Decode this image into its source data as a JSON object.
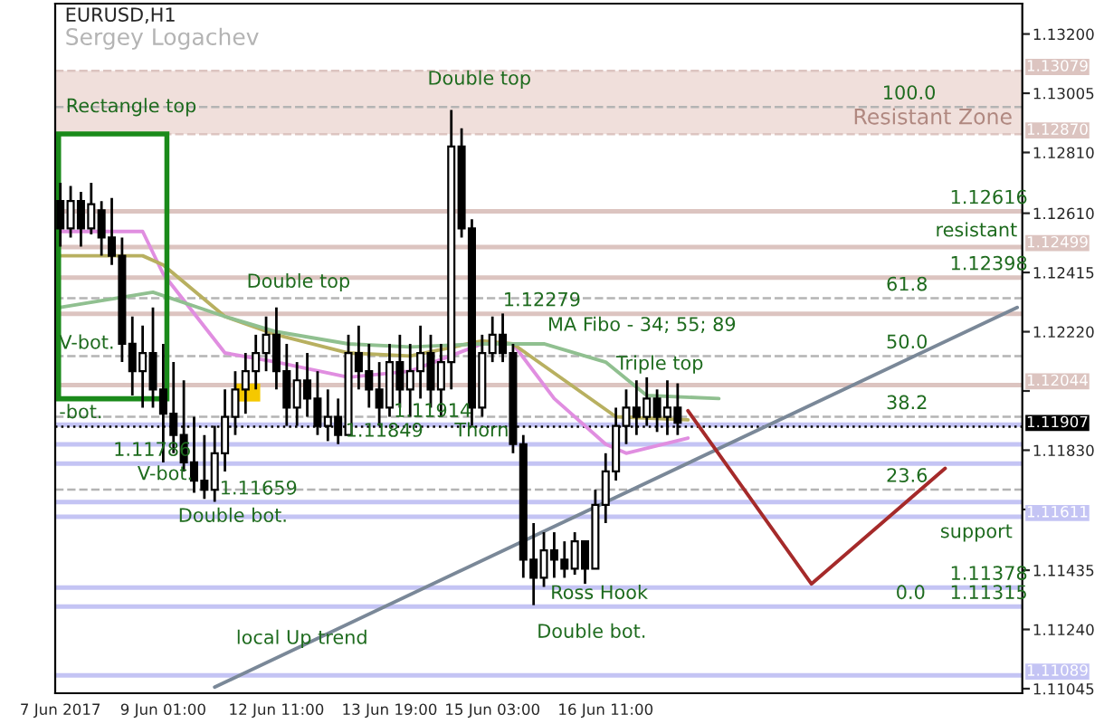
{
  "chart_data": {
    "type": "candlestick",
    "title": "EURUSD,H1",
    "subtitle": "Sergey Logachev",
    "categories": [
      "7 Jun 2017",
      null,
      null,
      null,
      null,
      null,
      null,
      null,
      null,
      null,
      "9 Jun 01:00",
      null,
      null,
      null,
      null,
      null,
      null,
      null,
      null,
      null,
      null,
      "12 Jun 11:00",
      null,
      null,
      null,
      null,
      null,
      null,
      null,
      null,
      null,
      null,
      "13 Jun 19:00",
      null,
      null,
      null,
      null,
      null,
      null,
      null,
      null,
      null,
      "15 Jun 03:00",
      null,
      null,
      null,
      null,
      null,
      null,
      null,
      null,
      null,
      null,
      "16 Jun 11:00",
      null,
      null,
      null,
      null,
      null,
      null,
      null,
      null,
      null,
      null,
      null,
      null,
      null,
      null,
      null,
      null,
      null,
      null,
      null,
      null,
      null,
      null,
      null,
      null,
      null,
      null,
      null,
      null,
      null,
      null,
      null,
      null,
      null,
      null,
      null,
      null,
      null,
      null,
      null,
      null
    ],
    "ohlc": [
      [
        1.1265,
        1.1271,
        1.125,
        1.1256
      ],
      [
        1.1256,
        1.127,
        1.1253,
        1.1265
      ],
      [
        1.1265,
        1.1268,
        1.125,
        1.1256
      ],
      [
        1.1256,
        1.1271,
        1.1254,
        1.1264
      ],
      [
        1.1262,
        1.1265,
        1.1247,
        1.1253
      ],
      [
        1.1253,
        1.1266,
        1.1244,
        1.1247
      ],
      [
        1.1247,
        1.1253,
        1.1212,
        1.1218
      ],
      [
        1.1218,
        1.1227,
        1.1201,
        1.1209
      ],
      [
        1.1209,
        1.1224,
        1.1197,
        1.1215
      ],
      [
        1.1215,
        1.123,
        1.1197,
        1.1203
      ],
      [
        1.1203,
        1.1218,
        1.1179,
        1.1195
      ],
      [
        1.1195,
        1.1212,
        1.1182,
        1.1188
      ],
      [
        1.1188,
        1.1206,
        1.1176,
        1.1179
      ],
      [
        1.1179,
        1.1194,
        1.1169,
        1.1173
      ],
      [
        1.1173,
        1.1188,
        1.1167,
        1.117
      ],
      [
        1.117,
        1.1191,
        1.1166,
        1.1182
      ],
      [
        1.1182,
        1.1203,
        1.1176,
        1.1194
      ],
      [
        1.1194,
        1.1209,
        1.1188,
        1.1203
      ],
      [
        1.1203,
        1.1215,
        1.1195,
        1.1209
      ],
      [
        1.1209,
        1.1221,
        1.1203,
        1.1215
      ],
      [
        1.1215,
        1.1227,
        1.1209,
        1.1221
      ],
      [
        1.1221,
        1.123,
        1.1203,
        1.1209
      ],
      [
        1.1209,
        1.1218,
        1.1191,
        1.1197
      ],
      [
        1.1197,
        1.1212,
        1.1191,
        1.1206
      ],
      [
        1.1206,
        1.1215,
        1.1194,
        1.12
      ],
      [
        1.12,
        1.1209,
        1.1188,
        1.1191
      ],
      [
        1.1191,
        1.1203,
        1.1186,
        1.1194
      ],
      [
        1.1194,
        1.12,
        1.1185,
        1.1188
      ],
      [
        1.1188,
        1.1221,
        1.1188,
        1.1215
      ],
      [
        1.1215,
        1.1224,
        1.1203,
        1.1209
      ],
      [
        1.1209,
        1.1218,
        1.1197,
        1.1203
      ],
      [
        1.1203,
        1.1212,
        1.1191,
        1.1197
      ],
      [
        1.1197,
        1.1218,
        1.1194,
        1.1212
      ],
      [
        1.1212,
        1.1221,
        1.1197,
        1.1203
      ],
      [
        1.1203,
        1.1218,
        1.1194,
        1.1209
      ],
      [
        1.1209,
        1.1224,
        1.12,
        1.1215
      ],
      [
        1.1215,
        1.1221,
        1.1197,
        1.1203
      ],
      [
        1.1203,
        1.1218,
        1.1194,
        1.1212
      ],
      [
        1.1212,
        1.1295,
        1.1203,
        1.1283
      ],
      [
        1.1283,
        1.1289,
        1.1253,
        1.1256
      ],
      [
        1.1256,
        1.1259,
        1.1191,
        1.1197
      ],
      [
        1.1197,
        1.1221,
        1.1194,
        1.1215
      ],
      [
        1.1215,
        1.1227,
        1.1212,
        1.1221
      ],
      [
        1.1221,
        1.1228,
        1.1212,
        1.1215
      ],
      [
        1.1215,
        1.1218,
        1.1182,
        1.1185
      ],
      [
        1.1185,
        1.1188,
        1.1141,
        1.1147
      ],
      [
        1.1147,
        1.1159,
        1.1132,
        1.1141
      ],
      [
        1.1141,
        1.1156,
        1.1138,
        1.115
      ],
      [
        1.115,
        1.1156,
        1.1141,
        1.1147
      ],
      [
        1.1147,
        1.1153,
        1.1141,
        1.1144
      ],
      [
        1.1144,
        1.1156,
        1.1142,
        1.1153
      ],
      [
        1.1153,
        1.1153,
        1.1139,
        1.1144
      ],
      [
        1.1144,
        1.117,
        1.1144,
        1.1165
      ],
      [
        1.1165,
        1.1182,
        1.1159,
        1.1176
      ],
      [
        1.1176,
        1.1197,
        1.1173,
        1.1191
      ],
      [
        1.1191,
        1.1203,
        1.1185,
        1.1197
      ],
      [
        1.1197,
        1.1206,
        1.1188,
        1.1194
      ],
      [
        1.1194,
        1.1207,
        1.1191,
        1.12
      ],
      [
        1.12,
        1.1203,
        1.1189,
        1.1194
      ],
      [
        1.1194,
        1.1206,
        1.1188,
        1.1197
      ],
      [
        1.1197,
        1.1205,
        1.1188,
        1.1192
      ],
      null,
      null,
      null,
      null,
      null,
      null,
      null,
      null,
      null,
      null,
      null,
      null,
      null,
      null,
      null,
      null,
      null,
      null,
      null,
      null,
      null,
      null,
      null,
      null,
      null,
      null,
      null,
      null,
      null,
      null,
      null,
      null,
      null
    ],
    "series": [
      {
        "type": "line",
        "color": "#e08ee0",
        "values": [
          1.1255,
          null,
          null,
          null,
          null,
          null,
          null,
          null,
          1.1255,
          null,
          1.1241,
          null,
          null,
          null,
          null,
          null,
          1.1215,
          null,
          null,
          null,
          null,
          1.1212,
          null,
          null,
          null,
          null,
          null,
          null,
          1.1207,
          null,
          null,
          null,
          null,
          null,
          1.1209,
          null,
          null,
          null,
          null,
          null,
          null,
          1.1218,
          null,
          null,
          1.1218,
          null,
          null,
          null,
          1.12,
          null,
          null,
          null,
          null,
          1.1185,
          null,
          1.1182,
          null,
          null,
          null,
          null,
          null,
          1.1187,
          null,
          null,
          null,
          null,
          null,
          null,
          null,
          null,
          null,
          null,
          null,
          null,
          null,
          null,
          null,
          null,
          null,
          null,
          null,
          null,
          null,
          null,
          null,
          null,
          null,
          null,
          null,
          null,
          null,
          null,
          null,
          null
        ]
      },
      {
        "type": "line",
        "color": "#b8b060",
        "values": [
          1.1247,
          null,
          null,
          null,
          null,
          null,
          null,
          null,
          1.1247,
          null,
          1.1244,
          null,
          null,
          null,
          null,
          null,
          1.1227,
          null,
          null,
          null,
          null,
          1.1221,
          null,
          null,
          null,
          null,
          null,
          null,
          1.1215,
          null,
          null,
          null,
          null,
          null,
          1.1214,
          null,
          null,
          null,
          null,
          null,
          null,
          1.1219,
          null,
          null,
          1.1218,
          null,
          null,
          null,
          null,
          1.1206,
          null,
          null,
          null,
          null,
          1.1194,
          null,
          null,
          null,
          null,
          null,
          null,
          1.1193,
          null,
          null,
          null,
          null,
          null,
          null,
          null,
          null,
          null,
          null,
          null,
          null,
          null,
          null,
          null,
          null,
          null,
          null,
          null,
          null,
          null,
          null,
          null,
          null,
          null,
          null,
          null,
          null,
          null,
          null,
          null,
          null
        ]
      },
      {
        "type": "line",
        "color": "#90c090",
        "values": [
          1.123,
          null,
          null,
          null,
          null,
          null,
          null,
          null,
          null,
          1.1235,
          null,
          null,
          null,
          null,
          null,
          null,
          1.1227,
          null,
          null,
          null,
          null,
          1.1222,
          null,
          null,
          null,
          null,
          null,
          null,
          1.1218,
          null,
          null,
          null,
          null,
          null,
          1.1217,
          null,
          null,
          null,
          null,
          null,
          null,
          1.1218,
          null,
          null,
          null,
          null,
          null,
          1.1218,
          null,
          null,
          null,
          null,
          null,
          1.1212,
          null,
          null,
          null,
          1.1201,
          null,
          null,
          null,
          null,
          null,
          null,
          1.12,
          null,
          null,
          null,
          null,
          null,
          null,
          null,
          null,
          null,
          null,
          null,
          null,
          null,
          null,
          null,
          null,
          null,
          null,
          null,
          null,
          null,
          null,
          null,
          null,
          null,
          null,
          null,
          null,
          null
        ]
      },
      {
        "type": "line",
        "color": "#7a8898",
        "values": [
          null,
          null,
          null,
          null,
          null,
          null,
          null,
          null,
          null,
          null,
          null,
          null,
          null,
          null,
          null,
          1.1105,
          null,
          null,
          null,
          null,
          null,
          null,
          null,
          null,
          null,
          null,
          null,
          null,
          null,
          null,
          null,
          null,
          null,
          null,
          null,
          null,
          null,
          null,
          null,
          null,
          null,
          null,
          null,
          null,
          null,
          null,
          null,
          null,
          null,
          null,
          null,
          null,
          null,
          null,
          null,
          null,
          null,
          null,
          null,
          null,
          null,
          null,
          null,
          null,
          null,
          null,
          null,
          null,
          null,
          null,
          null,
          null,
          null,
          null,
          null,
          null,
          null,
          null,
          null,
          null,
          null,
          null,
          null,
          null,
          null,
          null,
          null,
          null,
          null,
          null,
          null,
          null,
          null,
          1.123
        ]
      },
      {
        "type": "line",
        "color": "#a52a2a",
        "values": [
          null,
          null,
          null,
          null,
          null,
          null,
          null,
          null,
          null,
          null,
          null,
          null,
          null,
          null,
          null,
          null,
          null,
          null,
          null,
          null,
          null,
          null,
          null,
          null,
          null,
          null,
          null,
          null,
          null,
          null,
          null,
          null,
          null,
          null,
          null,
          null,
          null,
          null,
          null,
          null,
          null,
          null,
          null,
          null,
          null,
          null,
          null,
          null,
          null,
          null,
          null,
          null,
          null,
          null,
          null,
          null,
          null,
          null,
          null,
          null,
          null,
          1.1196,
          null,
          null,
          null,
          null,
          null,
          null,
          null,
          null,
          null,
          null,
          null,
          1.1139,
          null,
          null,
          null,
          null,
          null,
          null,
          null,
          null,
          null,
          null,
          null,
          null,
          1.1177,
          null,
          null,
          null,
          null,
          null,
          null,
          null
        ]
      }
    ],
    "ylim": [
      1.1103,
      1.133
    ],
    "yticks": [
      {
        "value": 1.132,
        "label": "1.13200"
      },
      {
        "value": 1.13005,
        "label": "1.13005"
      },
      {
        "value": 1.1281,
        "label": "1.12810"
      },
      {
        "value": 1.1261,
        "label": "1.12610"
      },
      {
        "value": 1.12415,
        "label": "1.12415"
      },
      {
        "value": 1.1222,
        "label": "1.12220"
      },
      {
        "value": 1.12025,
        "label": null
      },
      {
        "value": 1.1183,
        "label": "1.11830"
      },
      {
        "value": 1.11635,
        "label": null
      },
      {
        "value": 1.11435,
        "label": "1.11435"
      },
      {
        "value": 1.1124,
        "label": "1.11240"
      },
      {
        "value": 1.11045,
        "label": "1.11045"
      }
    ],
    "bands": [
      {
        "axis": "y",
        "from": 1.1287,
        "to": 1.13079,
        "label": "Resistant Zone",
        "color": "#f0dfdb"
      }
    ],
    "ref_lines": [
      {
        "axis": "y",
        "value": 1.13079,
        "label": "1.13079",
        "color": "#dcc4c0",
        "line_style": "dashed"
      },
      {
        "axis": "y",
        "value": 1.1287,
        "label": "1.12870",
        "color": "#dcc4c0",
        "line_style": "dashed"
      },
      {
        "axis": "y",
        "value": 1.12616,
        "color": "#dcc4c0",
        "line_style": "solid"
      },
      {
        "axis": "y",
        "value": 1.12499,
        "label": "1.12499",
        "color": "#dcc4c0",
        "line_style": "solid"
      },
      {
        "axis": "y",
        "value": 1.12398,
        "color": "#dcc4c0",
        "line_style": "solid"
      },
      {
        "axis": "y",
        "value": 1.12279,
        "color": "#dcc4c0",
        "line_style": "solid"
      },
      {
        "axis": "y",
        "value": 1.12044,
        "label": "1.12044",
        "color": "#dcc4c0",
        "line_style": "solid"
      },
      {
        "axis": "y",
        "value": 1.11914,
        "color": "#c4c4f4",
        "line_style": "solid"
      },
      {
        "axis": "y",
        "value": 1.11907,
        "label": "1.11907",
        "color": "#000000",
        "line_style": "dotted"
      },
      {
        "axis": "y",
        "value": 1.11849,
        "color": "#c4c4f4",
        "line_style": "solid"
      },
      {
        "axis": "y",
        "value": 1.11786,
        "color": "#c4c4f4",
        "line_style": "solid"
      },
      {
        "axis": "y",
        "value": 1.11659,
        "color": "#c4c4f4",
        "line_style": "solid"
      },
      {
        "axis": "y",
        "value": 1.11611,
        "label": "1.11611",
        "color": "#c4c4f4",
        "line_style": "solid"
      },
      {
        "axis": "y",
        "value": 1.11378,
        "color": "#c4c4f4",
        "line_style": "solid"
      },
      {
        "axis": "y",
        "value": 1.11315,
        "color": "#c4c4f4",
        "line_style": "solid"
      },
      {
        "axis": "y",
        "value": 1.11089,
        "label": "1.11089",
        "color": "#c4c4f4",
        "line_style": "solid"
      },
      {
        "axis": "y",
        "value": 1.1296,
        "color": "#b4b4b4",
        "line_style": "dashed"
      },
      {
        "axis": "y",
        "value": 1.1233,
        "color": "#b4b4b4",
        "line_style": "dashed"
      },
      {
        "axis": "y",
        "value": 1.1214,
        "color": "#b4b4b4",
        "line_style": "dashed"
      },
      {
        "axis": "y",
        "value": 1.1194,
        "color": "#b4b4b4",
        "line_style": "dashed"
      },
      {
        "axis": "y",
        "value": 1.117,
        "color": "#b4b4b4",
        "line_style": "dashed"
      }
    ],
    "annotations": [
      "Rectangle top",
      "Double top",
      {
        "text": "Double top",
        "y": 1.1234
      },
      "V-bot.",
      {
        "text": "-bot.",
        "y": 1.1191
      },
      {
        "text": "1.11786",
        "y": 1.11786
      },
      "V-bot.",
      {
        "text": "1.11659",
        "y": 1.11659
      },
      "Double bot.",
      {
        "text": "1.11849",
        "y": 1.11849
      },
      {
        "text": "1.11914",
        "y": 1.11914
      },
      {
        "text": "Thorn",
        "y": 1.1185
      },
      {
        "text": "1.12279",
        "y": 1.12279
      },
      "MA Fibo - 34; 55; 89",
      {
        "text": "Triple top",
        "y": 1.1207
      },
      {
        "text": "Ross Hook",
        "y": 1.11315
      },
      "Double bot.",
      "local Up trend",
      {
        "text": "100.0",
        "y": 1.1296
      },
      {
        "text": "61.8",
        "y": 1.1233
      },
      {
        "text": "50.0",
        "y": 1.1214
      },
      {
        "text": "38.2",
        "y": 1.1194
      },
      {
        "text": "23.6",
        "y": 1.117
      },
      {
        "text": "0.0",
        "y": 1.11315
      },
      {
        "text": "1.12616",
        "y": 1.12616
      },
      "resistant",
      {
        "text": "1.12398",
        "y": 1.12398
      },
      "support",
      {
        "text": "1.11378",
        "y": 1.11378
      },
      {
        "text": "1.11315",
        "y": 1.11315
      }
    ]
  }
}
